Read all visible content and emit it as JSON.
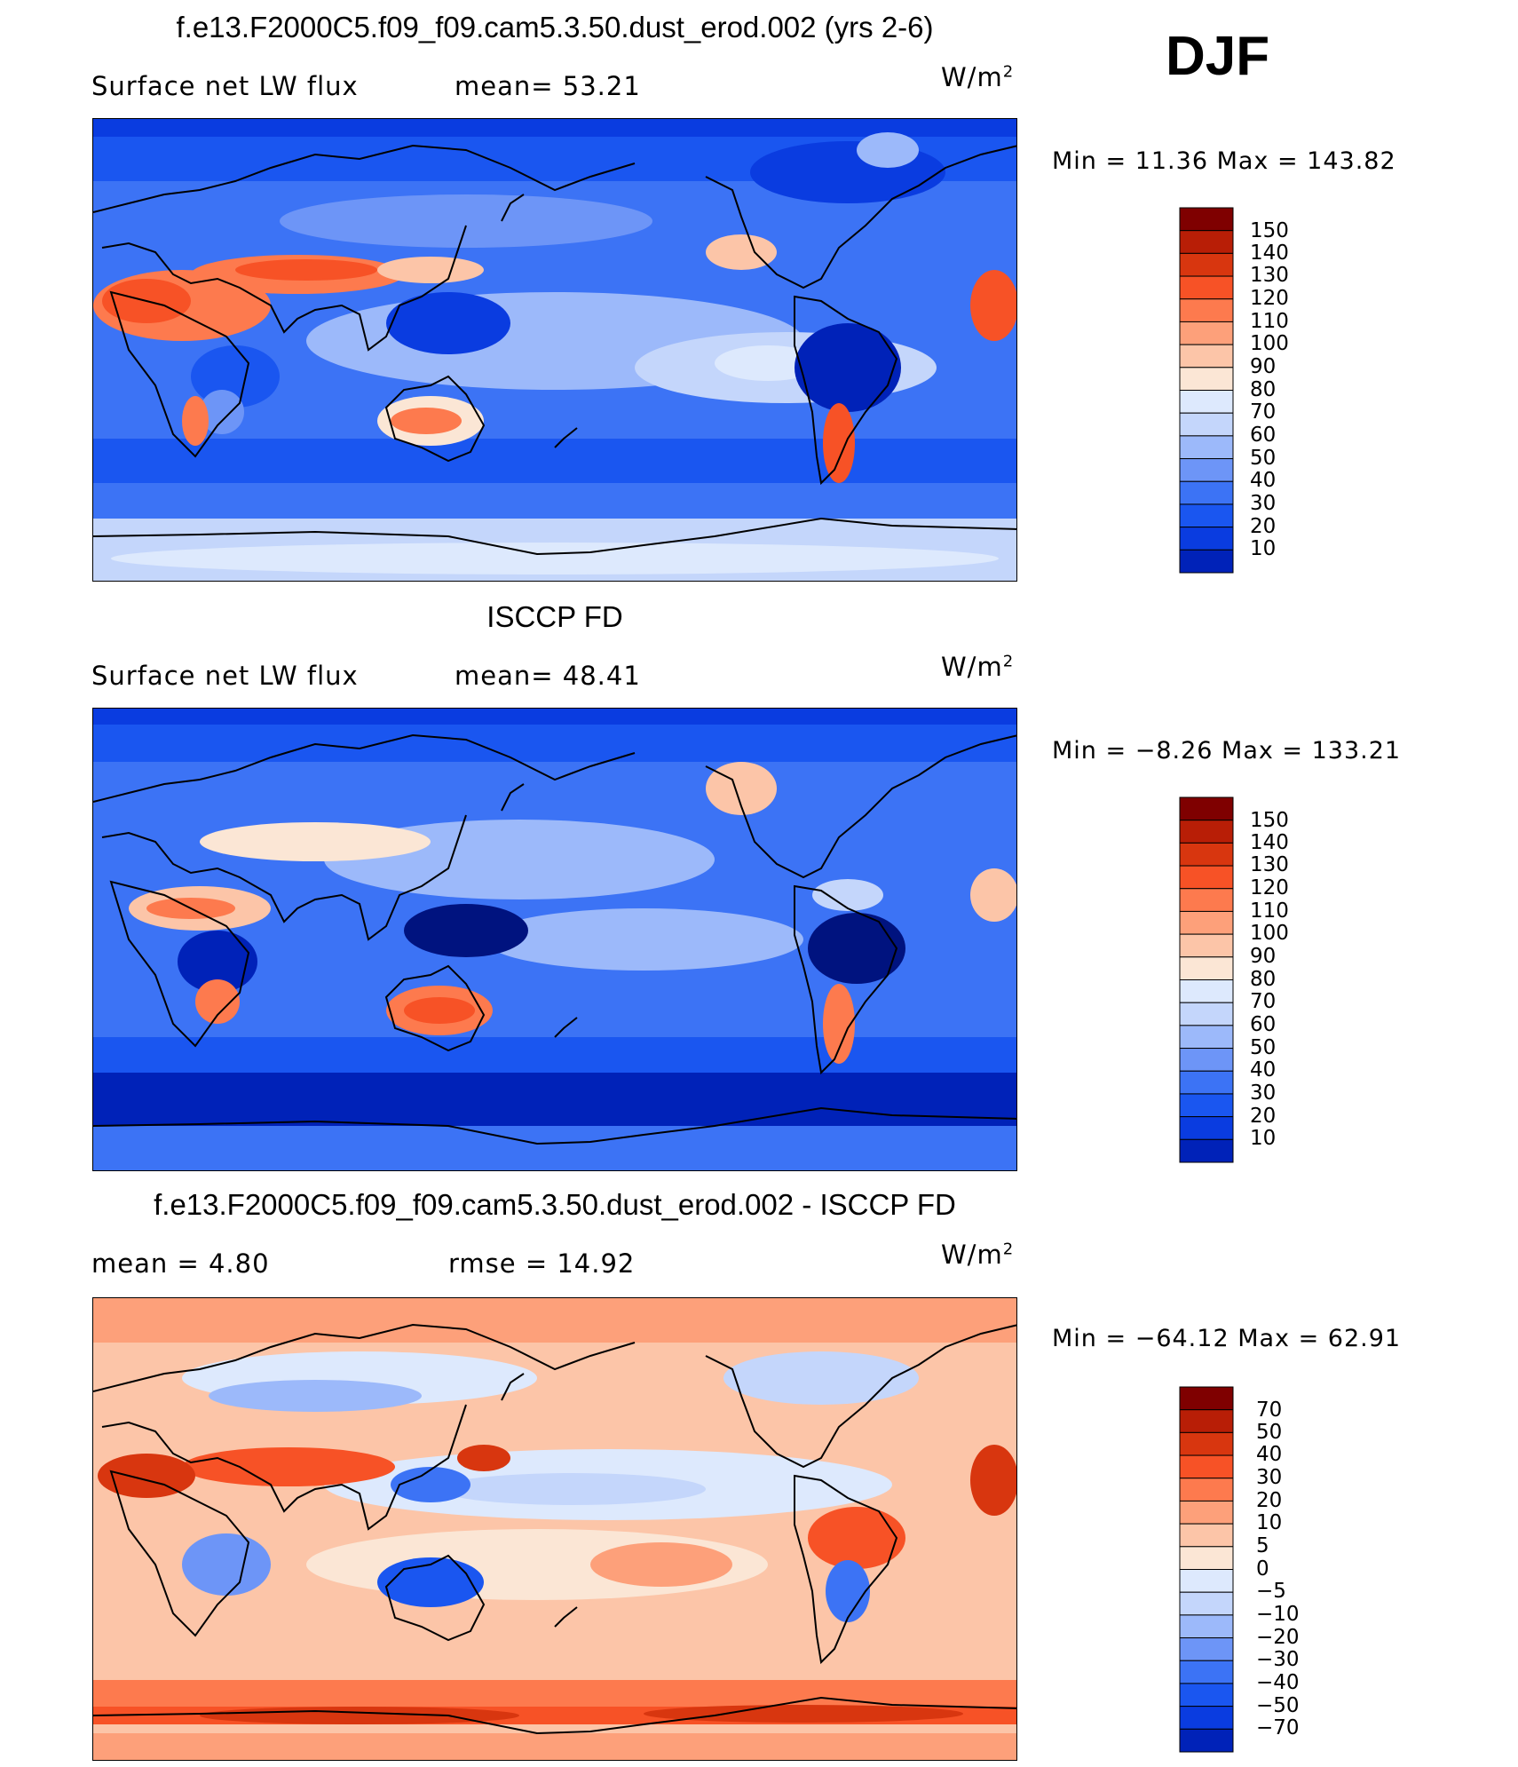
{
  "season": "DJF",
  "colors": {
    "abs_scale": [
      "#00137f",
      "#0022b8",
      "#0a3ce0",
      "#1a56f0",
      "#3c73f5",
      "#6d95f7",
      "#9cb9fa",
      "#c4d6fb",
      "#dde9fd",
      "#fbe6d5",
      "#fcc5a8",
      "#fda07a",
      "#fd7a4e",
      "#f75226",
      "#d8360f",
      "#b81e06",
      "#7f0000"
    ],
    "diff_scale": [
      "#00137f",
      "#0022b8",
      "#0a3ce0",
      "#1a56f0",
      "#3c73f5",
      "#6d95f7",
      "#9cb9fa",
      "#c4d6fb",
      "#dde9fd",
      "#fbe6d5",
      "#fcc5a8",
      "#fda07a",
      "#fd7a4e",
      "#f75226",
      "#d8360f",
      "#b81e06",
      "#7f0000"
    ]
  },
  "panels": [
    {
      "title": "f.e13.F2000C5.f09_f09.cam5.3.50.dust_erod.002 (yrs 2-6)",
      "left_label": "Surface net LW flux",
      "mid_label": "mean=   53.21",
      "units_base": "W/m",
      "units_exp": "2",
      "minmax": "Min =   11.36 Max = 143.82"
    },
    {
      "title": "ISCCP FD",
      "left_label": "Surface net LW flux",
      "mid_label": "mean=   48.41",
      "units_base": "W/m",
      "units_exp": "2",
      "minmax": "Min =   −8.26 Max = 133.21"
    },
    {
      "title": "f.e13.F2000C5.f09_f09.cam5.3.50.dust_erod.002 - ISCCP FD",
      "left_label": "mean =    4.80",
      "mid_label": "rmse =   14.92",
      "units_base": "W/m",
      "units_exp": "2",
      "minmax": "Min = −64.12 Max =   62.91"
    }
  ],
  "chart_data": [
    {
      "type": "heatmap",
      "title": "f.e13.F2000C5.f09_f09.cam5.3.50.dust_erod.002 (yrs 2-6)",
      "variable": "Surface net LW flux",
      "mean": 53.21,
      "min": 11.36,
      "max": 143.82,
      "units": "W/m2",
      "colorbar_levels": [
        "150",
        "140",
        "130",
        "120",
        "110",
        "100",
        "90",
        "80",
        "70",
        "60",
        "50",
        "40",
        "30",
        "20",
        "10"
      ]
    },
    {
      "type": "heatmap",
      "title": "ISCCP FD",
      "variable": "Surface net LW flux",
      "mean": 48.41,
      "min": -8.26,
      "max": 133.21,
      "units": "W/m2",
      "colorbar_levels": [
        "150",
        "140",
        "130",
        "120",
        "110",
        "100",
        "90",
        "80",
        "70",
        "60",
        "50",
        "40",
        "30",
        "20",
        "10"
      ]
    },
    {
      "type": "heatmap",
      "title": "f.e13.F2000C5.f09_f09.cam5.3.50.dust_erod.002 - ISCCP FD",
      "mean": 4.8,
      "rmse": 14.92,
      "min": -64.12,
      "max": 62.91,
      "units": "W/m2",
      "colorbar_levels": [
        "70",
        "50",
        "40",
        "30",
        "20",
        "10",
        "5",
        "0",
        "−5",
        "−10",
        "−20",
        "−30",
        "−40",
        "−50",
        "−70"
      ]
    }
  ]
}
